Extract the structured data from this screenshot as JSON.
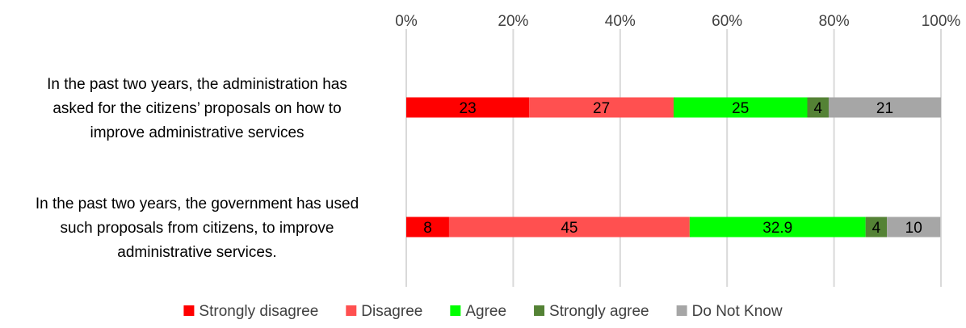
{
  "chart_data": {
    "type": "bar",
    "orientation": "horizontal",
    "stacked": true,
    "title": "",
    "xlabel": "",
    "ylabel": "",
    "xlim": [
      0,
      100
    ],
    "x_ticks": [
      "0%",
      "20%",
      "40%",
      "60%",
      "80%",
      "100%"
    ],
    "x_tick_values": [
      0,
      20,
      40,
      60,
      80,
      100
    ],
    "categories": [
      "In the past two years, the administration has asked for the citizens’ proposals on how to improve administrative services",
      "In the past two years, the government has used such proposals from citizens, to improve administrative services."
    ],
    "category_lines": [
      [
        "In the past two years, the administration has",
        "asked for the citizens’ proposals on how to",
        "improve administrative services"
      ],
      [
        "In the past two years, the government has used",
        "such proposals from citizens, to improve",
        "administrative services."
      ]
    ],
    "series": [
      {
        "name": "Strongly disagree",
        "color": "#ff0000",
        "values": [
          23,
          8
        ],
        "labels": [
          "23",
          "8"
        ]
      },
      {
        "name": "Disagree",
        "color": "#ff5050",
        "values": [
          27,
          45
        ],
        "labels": [
          "27",
          "45"
        ]
      },
      {
        "name": "Agree",
        "color": "#00ff00",
        "values": [
          25,
          32.9
        ],
        "labels": [
          "25",
          "32.9"
        ]
      },
      {
        "name": "Strongly agree",
        "color": "#548235",
        "values": [
          4,
          4
        ],
        "labels": [
          "4",
          "4"
        ]
      },
      {
        "name": "Do Not Know",
        "color": "#a6a6a6",
        "values": [
          21,
          10
        ],
        "labels": [
          "21",
          "10"
        ]
      }
    ],
    "grid": true,
    "legend_position": "bottom"
  }
}
